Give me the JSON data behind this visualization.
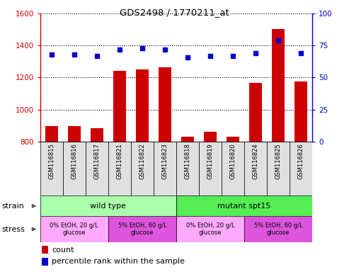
{
  "title": "GDS2498 / 1770211_at",
  "samples": [
    "GSM116815",
    "GSM116816",
    "GSM116817",
    "GSM116821",
    "GSM116822",
    "GSM116823",
    "GSM116818",
    "GSM116819",
    "GSM116820",
    "GSM116824",
    "GSM116825",
    "GSM116826"
  ],
  "counts": [
    895,
    898,
    885,
    1240,
    1250,
    1265,
    830,
    860,
    830,
    1165,
    1505,
    1175
  ],
  "percentiles": [
    68,
    68,
    67,
    72,
    73,
    72,
    66,
    67,
    67,
    69,
    79,
    69
  ],
  "ylim_left": [
    800,
    1600
  ],
  "ylim_right": [
    0,
    100
  ],
  "yticks_left": [
    800,
    1000,
    1200,
    1400,
    1600
  ],
  "yticks_right": [
    0,
    25,
    50,
    75,
    100
  ],
  "bar_color": "#cc0000",
  "dot_color": "#0000cc",
  "strain_labels": [
    {
      "label": "wild type",
      "start": 0,
      "end": 6,
      "color": "#aaffaa"
    },
    {
      "label": "mutant spt15",
      "start": 6,
      "end": 12,
      "color": "#55ee55"
    }
  ],
  "stress_labels": [
    {
      "label": "0% EtOH, 20 g/L\nglucose",
      "start": 0,
      "end": 3,
      "color": "#ffaaff"
    },
    {
      "label": "5% EtOH, 60 g/L\nglucose",
      "start": 3,
      "end": 6,
      "color": "#dd55dd"
    },
    {
      "label": "0% EtOH, 20 g/L\nglucose",
      "start": 6,
      "end": 9,
      "color": "#ffaaff"
    },
    {
      "label": "5% EtOH, 60 g/L\nglucose",
      "start": 9,
      "end": 12,
      "color": "#dd55dd"
    }
  ],
  "sample_bg": "#e0e0e0",
  "fig_width": 4.93,
  "fig_height": 3.84,
  "dpi": 100
}
